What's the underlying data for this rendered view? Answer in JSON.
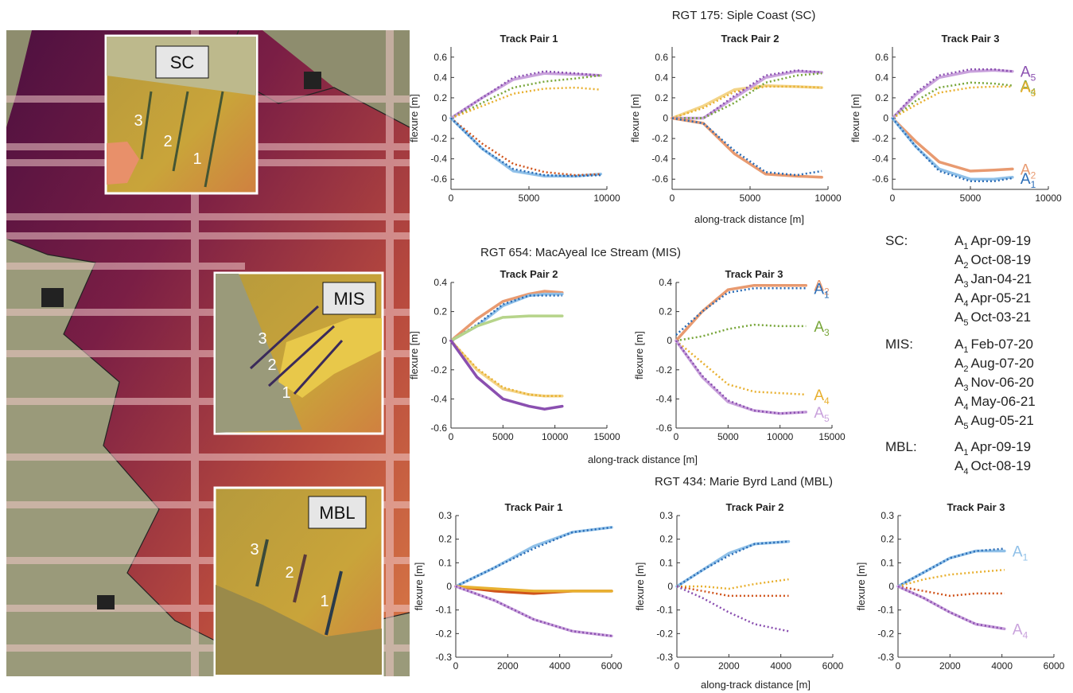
{
  "map": {
    "insets": [
      {
        "label": "SC",
        "tracks": [
          "3",
          "2",
          "1"
        ]
      },
      {
        "label": "MIS",
        "tracks": [
          "3",
          "2",
          "1"
        ]
      },
      {
        "label": "MBL",
        "tracks": [
          "3",
          "2",
          "1"
        ]
      }
    ]
  },
  "sections": [
    {
      "title": "RGT 175: Siple Coast (SC)",
      "xlabel": "along-track distance [m]"
    },
    {
      "title": "RGT 654: MacAyeal Ice Stream (MIS)",
      "xlabel": "along-track distance [m]"
    },
    {
      "title": "RGT 434: Marie Byrd Land (MBL)",
      "xlabel": "along-track distance [m]"
    }
  ],
  "legend": [
    {
      "site": "SC:",
      "entries": [
        {
          "a": "A",
          "sub": "1",
          "date": "Apr-09-19"
        },
        {
          "a": "A",
          "sub": "2",
          "date": "Oct-08-19"
        },
        {
          "a": "A",
          "sub": "3",
          "date": "Jan-04-21"
        },
        {
          "a": "A",
          "sub": "4",
          "date": "Apr-05-21"
        },
        {
          "a": "A",
          "sub": "5",
          "date": "Oct-03-21"
        }
      ]
    },
    {
      "site": "MIS:",
      "entries": [
        {
          "a": "A",
          "sub": "1",
          "date": "Feb-07-20"
        },
        {
          "a": "A",
          "sub": "2",
          "date": "Aug-07-20"
        },
        {
          "a": "A",
          "sub": "3",
          "date": "Nov-06-20"
        },
        {
          "a": "A",
          "sub": "4",
          "date": "May-06-21"
        },
        {
          "a": "A",
          "sub": "5",
          "date": "Aug-05-21"
        }
      ]
    },
    {
      "site": "MBL:",
      "entries": [
        {
          "a": "A",
          "sub": "1",
          "date": "Apr-09-19"
        },
        {
          "a": "A",
          "sub": "4",
          "date": "Oct-08-19"
        }
      ]
    }
  ],
  "chart_data": [
    {
      "type": "line",
      "title": "Track Pair 1",
      "ylabel": "flexure [m]",
      "xlim": [
        0,
        10000
      ],
      "xticks": [
        0,
        5000,
        10000
      ],
      "ylim": [
        -0.7,
        0.7
      ],
      "yticks": [
        -0.6,
        -0.4,
        -0.2,
        0,
        0.2,
        0.4,
        0.6
      ],
      "x": [
        0,
        2000,
        4000,
        6000,
        8000,
        9600
      ],
      "series": [
        {
          "color": "#c9a2dc",
          "dash": false,
          "values": [
            0,
            0.2,
            0.38,
            0.44,
            0.43,
            0.42
          ]
        },
        {
          "color": "#8a4fb0",
          "dash": true,
          "values": [
            0,
            0.2,
            0.4,
            0.46,
            0.44,
            0.42
          ]
        },
        {
          "color": "#78a63a",
          "dash": true,
          "values": [
            0,
            0.15,
            0.3,
            0.36,
            0.39,
            0.42
          ]
        },
        {
          "color": "#e8b030",
          "dash": true,
          "values": [
            0,
            0.12,
            0.24,
            0.29,
            0.3,
            0.28
          ]
        },
        {
          "color": "#8fc0e8",
          "dash": false,
          "values": [
            0,
            -0.3,
            -0.52,
            -0.57,
            -0.57,
            -0.55
          ]
        },
        {
          "color": "#d0541c",
          "dash": true,
          "values": [
            0,
            -0.25,
            -0.45,
            -0.53,
            -0.56,
            -0.55
          ]
        },
        {
          "color": "#2a6cb6",
          "dash": true,
          "values": [
            0,
            -0.3,
            -0.5,
            -0.56,
            -0.57,
            -0.56
          ]
        }
      ]
    },
    {
      "type": "line",
      "title": "Track Pair 2",
      "ylabel": "flexure [m]",
      "xlim": [
        0,
        10000
      ],
      "xticks": [
        0,
        5000,
        10000
      ],
      "ylim": [
        -0.7,
        0.7
      ],
      "yticks": [
        -0.6,
        -0.4,
        -0.2,
        0,
        0.2,
        0.4,
        0.6
      ],
      "x": [
        0,
        2000,
        4000,
        6000,
        8000,
        9600
      ],
      "series": [
        {
          "color": "#f3d488",
          "dash": false,
          "values": [
            0,
            0.12,
            0.28,
            0.32,
            0.31,
            0.3
          ]
        },
        {
          "color": "#e8b030",
          "dash": true,
          "values": [
            0,
            0.1,
            0.26,
            0.31,
            0.31,
            0.3
          ]
        },
        {
          "color": "#c9a2dc",
          "dash": false,
          "values": [
            0,
            0,
            0.2,
            0.4,
            0.46,
            0.45
          ]
        },
        {
          "color": "#8a4fb0",
          "dash": true,
          "values": [
            0,
            0,
            0.22,
            0.42,
            0.47,
            0.45
          ]
        },
        {
          "color": "#78a63a",
          "dash": true,
          "values": [
            0,
            0,
            0.15,
            0.35,
            0.42,
            0.44
          ]
        },
        {
          "color": "#e89a70",
          "dash": false,
          "values": [
            0,
            -0.05,
            -0.35,
            -0.55,
            -0.57,
            -0.58
          ]
        },
        {
          "color": "#2a6cb6",
          "dash": true,
          "values": [
            0,
            -0.05,
            -0.32,
            -0.53,
            -0.56,
            -0.52
          ]
        }
      ]
    },
    {
      "type": "line",
      "title": "Track Pair 3",
      "ylabel": "flexure [m]",
      "xlim": [
        0,
        10000
      ],
      "xticks": [
        0,
        5000,
        10000
      ],
      "ylim": [
        -0.7,
        0.7
      ],
      "yticks": [
        -0.6,
        -0.4,
        -0.2,
        0,
        0.2,
        0.4,
        0.6
      ],
      "x": [
        0,
        1500,
        3000,
        5000,
        6500,
        7700
      ],
      "series": [
        {
          "color": "#c9a2dc",
          "dash": false,
          "values": [
            0,
            0.23,
            0.4,
            0.46,
            0.47,
            0.46
          ]
        },
        {
          "color": "#8a4fb0",
          "dash": true,
          "values": [
            0,
            0.25,
            0.42,
            0.48,
            0.48,
            0.46
          ],
          "label": {
            "text": "A",
            "sub": "5"
          }
        },
        {
          "color": "#78a63a",
          "dash": true,
          "values": [
            0,
            0.17,
            0.3,
            0.35,
            0.34,
            0.32
          ],
          "label": {
            "text": "A",
            "sub": "4"
          }
        },
        {
          "color": "#e8b030",
          "dash": true,
          "values": [
            0,
            0.13,
            0.25,
            0.3,
            0.31,
            0.31
          ],
          "label": {
            "text": "A",
            "sub": "3"
          }
        },
        {
          "color": "#e89a70",
          "dash": false,
          "values": [
            0,
            -0.23,
            -0.43,
            -0.52,
            -0.51,
            -0.5
          ],
          "label": {
            "text": "A",
            "sub": "2"
          }
        },
        {
          "color": "#8fc0e8",
          "dash": false,
          "values": [
            0,
            -0.28,
            -0.5,
            -0.6,
            -0.6,
            -0.58
          ]
        },
        {
          "color": "#2a6cb6",
          "dash": true,
          "values": [
            0,
            -0.28,
            -0.52,
            -0.62,
            -0.62,
            -0.59
          ],
          "label": {
            "text": "A",
            "sub": "1"
          }
        }
      ]
    },
    {
      "type": "line",
      "title": "Track Pair 2",
      "ylabel": "flexure [m]",
      "xlim": [
        0,
        15000
      ],
      "xticks": [
        0,
        5000,
        10000,
        15000
      ],
      "ylim": [
        -0.6,
        0.4
      ],
      "yticks": [
        -0.6,
        -0.4,
        -0.2,
        0,
        0.2,
        0.4
      ],
      "x": [
        0,
        2500,
        5000,
        7500,
        9000,
        10700
      ],
      "series": [
        {
          "color": "#e89a70",
          "dash": false,
          "values": [
            0,
            0.15,
            0.27,
            0.32,
            0.34,
            0.33
          ]
        },
        {
          "color": "#8fc0e8",
          "dash": false,
          "values": [
            0,
            0.1,
            0.24,
            0.31,
            0.32,
            0.32
          ]
        },
        {
          "color": "#2a6cb6",
          "dash": true,
          "values": [
            0,
            0.11,
            0.25,
            0.31,
            0.31,
            0.31
          ]
        },
        {
          "color": "#b6d48a",
          "dash": false,
          "values": [
            0,
            0.1,
            0.16,
            0.17,
            0.17,
            0.17
          ]
        },
        {
          "color": "#f3d488",
          "dash": false,
          "values": [
            0,
            -0.2,
            -0.33,
            -0.37,
            -0.38,
            -0.38
          ]
        },
        {
          "color": "#e8b030",
          "dash": true,
          "values": [
            0,
            -0.19,
            -0.32,
            -0.37,
            -0.38,
            -0.38
          ]
        },
        {
          "color": "#8a4fb0",
          "dash": false,
          "values": [
            0,
            -0.25,
            -0.4,
            -0.45,
            -0.47,
            -0.45
          ]
        }
      ]
    },
    {
      "type": "line",
      "title": "Track Pair 3",
      "ylabel": "flexure [m]",
      "xlim": [
        0,
        15000
      ],
      "xticks": [
        0,
        5000,
        10000,
        15000
      ],
      "ylim": [
        -0.6,
        0.4
      ],
      "yticks": [
        -0.6,
        -0.4,
        -0.2,
        0,
        0.2,
        0.4
      ],
      "x": [
        0,
        2500,
        5000,
        7500,
        10000,
        12500
      ],
      "series": [
        {
          "color": "#e89a70",
          "dash": false,
          "values": [
            0,
            0.2,
            0.35,
            0.38,
            0.38,
            0.38
          ],
          "label": {
            "text": "A",
            "sub": "2"
          }
        },
        {
          "color": "#2a6cb6",
          "dash": true,
          "values": [
            0.04,
            0.2,
            0.33,
            0.36,
            0.36,
            0.36
          ],
          "label": {
            "text": "A",
            "sub": "1"
          }
        },
        {
          "color": "#78a63a",
          "dash": true,
          "values": [
            0,
            0.03,
            0.08,
            0.11,
            0.1,
            0.1
          ],
          "label": {
            "text": "A",
            "sub": "3"
          }
        },
        {
          "color": "#e8b030",
          "dash": true,
          "values": [
            0,
            -0.15,
            -0.3,
            -0.35,
            -0.36,
            -0.37
          ],
          "label": {
            "text": "A",
            "sub": "4"
          }
        },
        {
          "color": "#c9a2dc",
          "dash": false,
          "values": [
            0,
            -0.25,
            -0.42,
            -0.48,
            -0.5,
            -0.49
          ],
          "label": {
            "text": "A",
            "sub": "5"
          }
        },
        {
          "color": "#8a4fb0",
          "dash": true,
          "values": [
            0,
            -0.24,
            -0.41,
            -0.48,
            -0.5,
            -0.49
          ]
        }
      ]
    },
    {
      "type": "line",
      "title": "Track Pair 1",
      "ylabel": "flexure [m]",
      "xlim": [
        0,
        6000
      ],
      "xticks": [
        0,
        2000,
        4000,
        6000
      ],
      "ylim": [
        -0.3,
        0.3
      ],
      "yticks": [
        -0.3,
        -0.2,
        -0.1,
        0,
        0.1,
        0.2,
        0.3
      ],
      "x": [
        0,
        1500,
        3000,
        4500,
        6000
      ],
      "series": [
        {
          "color": "#8fc0e8",
          "dash": false,
          "values": [
            0,
            0.08,
            0.17,
            0.23,
            0.25
          ]
        },
        {
          "color": "#2a6cb6",
          "dash": true,
          "values": [
            0,
            0.08,
            0.16,
            0.23,
            0.25
          ]
        },
        {
          "color": "#d0541c",
          "dash": false,
          "values": [
            0,
            -0.02,
            -0.03,
            -0.02,
            -0.02
          ]
        },
        {
          "color": "#e8b030",
          "dash": false,
          "values": [
            0,
            -0.01,
            -0.02,
            -0.02,
            -0.02
          ]
        },
        {
          "color": "#c9a2dc",
          "dash": false,
          "values": [
            0,
            -0.06,
            -0.14,
            -0.19,
            -0.21
          ]
        },
        {
          "color": "#8a4fb0",
          "dash": true,
          "values": [
            0,
            -0.06,
            -0.14,
            -0.19,
            -0.21
          ]
        }
      ]
    },
    {
      "type": "line",
      "title": "Track Pair 2",
      "ylabel": "flexure [m]",
      "xlim": [
        0,
        6000
      ],
      "xticks": [
        0,
        2000,
        4000,
        6000
      ],
      "ylim": [
        -0.3,
        0.3
      ],
      "yticks": [
        -0.3,
        -0.2,
        -0.1,
        0,
        0.1,
        0.2,
        0.3
      ],
      "x": [
        0,
        1000,
        2000,
        3000,
        4300
      ],
      "series": [
        {
          "color": "#8fc0e8",
          "dash": false,
          "values": [
            0,
            0.07,
            0.14,
            0.18,
            0.19
          ]
        },
        {
          "color": "#2a6cb6",
          "dash": true,
          "values": [
            0,
            0.07,
            0.13,
            0.18,
            0.19
          ]
        },
        {
          "color": "#e8b030",
          "dash": true,
          "values": [
            0,
            0,
            -0.01,
            0.01,
            0.03
          ]
        },
        {
          "color": "#d0541c",
          "dash": true,
          "values": [
            0,
            -0.02,
            -0.04,
            -0.04,
            -0.04
          ]
        },
        {
          "color": "#8a4fb0",
          "dash": true,
          "values": [
            0,
            -0.05,
            -0.11,
            -0.16,
            -0.19
          ]
        }
      ]
    },
    {
      "type": "line",
      "title": "Track Pair 3",
      "ylabel": "flexure [m]",
      "xlim": [
        0,
        6000
      ],
      "xticks": [
        0,
        2000,
        4000,
        6000
      ],
      "ylim": [
        -0.3,
        0.3
      ],
      "yticks": [
        -0.3,
        -0.2,
        -0.1,
        0,
        0.1,
        0.2,
        0.3
      ],
      "x": [
        0,
        1000,
        2000,
        3000,
        4100
      ],
      "series": [
        {
          "color": "#8fc0e8",
          "dash": false,
          "values": [
            0,
            0.06,
            0.12,
            0.15,
            0.15
          ],
          "label": {
            "text": "A",
            "sub": "1"
          }
        },
        {
          "color": "#2a6cb6",
          "dash": true,
          "values": [
            0,
            0.06,
            0.12,
            0.15,
            0.16
          ]
        },
        {
          "color": "#e8b030",
          "dash": true,
          "values": [
            0,
            0.03,
            0.05,
            0.06,
            0.07
          ]
        },
        {
          "color": "#d0541c",
          "dash": true,
          "values": [
            0,
            -0.02,
            -0.04,
            -0.03,
            -0.03
          ]
        },
        {
          "color": "#c9a2dc",
          "dash": false,
          "values": [
            0,
            -0.05,
            -0.11,
            -0.16,
            -0.18
          ],
          "label": {
            "text": "A",
            "sub": "4"
          }
        },
        {
          "color": "#8a4fb0",
          "dash": true,
          "values": [
            0,
            -0.05,
            -0.11,
            -0.16,
            -0.18
          ]
        }
      ]
    }
  ]
}
